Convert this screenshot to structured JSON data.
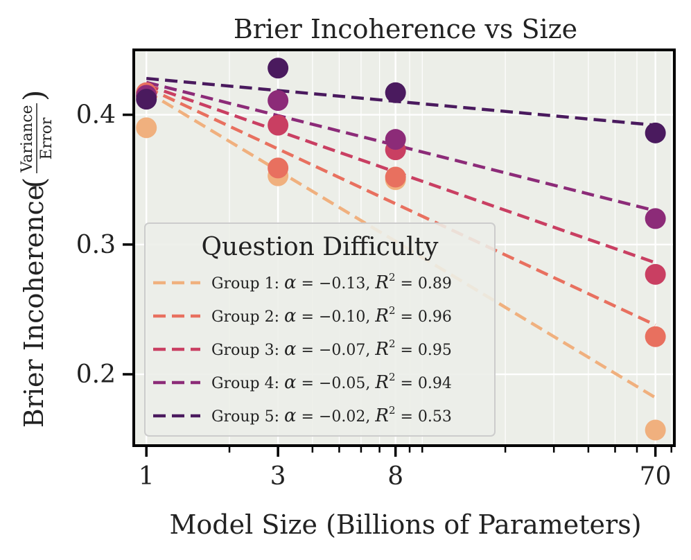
{
  "chart_data": {
    "type": "scatter",
    "title": "Brier Incoherence vs Size",
    "xlabel": "Model Size (Billions of Parameters)",
    "ylabel_main": "Brier Incoherence",
    "ylabel_fraction": {
      "numerator": "Variance",
      "denominator": "Error"
    },
    "x_scale": "log",
    "xlim": [
      0.9,
      82
    ],
    "ylim": [
      0.145,
      0.45
    ],
    "x_ticks": [
      1,
      3,
      8,
      70
    ],
    "x_tick_labels": [
      "1",
      "3",
      "8",
      "70"
    ],
    "y_ticks": [
      0.2,
      0.3,
      0.4
    ],
    "y_tick_labels": [
      "0.2",
      "0.3",
      "0.4"
    ],
    "grid": true,
    "background_color": "#eceee8",
    "legend": {
      "title": "Question Difficulty",
      "position": "lower-left"
    },
    "series": [
      {
        "name": "Group 1",
        "label_prefix": "Group 1: ",
        "alpha": "−0.13",
        "r2": "0.89",
        "color": "#f0b07e",
        "x": [
          1,
          3,
          8,
          70
        ],
        "y": [
          0.39,
          0.353,
          0.35,
          0.157
        ],
        "fit": [
          0.418,
          0.182
        ]
      },
      {
        "name": "Group 2",
        "label_prefix": "Group 2: ",
        "alpha": "−0.10",
        "r2": "0.96",
        "color": "#e8705f",
        "x": [
          1,
          3,
          8,
          70
        ],
        "y": [
          0.417,
          0.359,
          0.352,
          0.229
        ],
        "fit": [
          0.421,
          0.238
        ]
      },
      {
        "name": "Group 3",
        "label_prefix": "Group 3: ",
        "alpha": "−0.07",
        "r2": "0.95",
        "color": "#c93f62",
        "x": [
          1,
          3,
          8,
          70
        ],
        "y": [
          0.414,
          0.392,
          0.373,
          0.277
        ],
        "fit": [
          0.423,
          0.286
        ]
      },
      {
        "name": "Group 4",
        "label_prefix": "Group 4: ",
        "alpha": "−0.05",
        "r2": "0.94",
        "color": "#8c2b78",
        "x": [
          1,
          3,
          8,
          70
        ],
        "y": [
          0.415,
          0.411,
          0.381,
          0.32
        ],
        "fit": [
          0.425,
          0.326
        ]
      },
      {
        "name": "Group 5",
        "label_prefix": "Group 5: ",
        "alpha": "−0.02",
        "r2": "0.53",
        "color": "#4a1a5e",
        "x": [
          1,
          3,
          8,
          70
        ],
        "y": [
          0.412,
          0.436,
          0.417,
          0.386
        ],
        "fit": [
          0.428,
          0.392
        ]
      }
    ]
  }
}
